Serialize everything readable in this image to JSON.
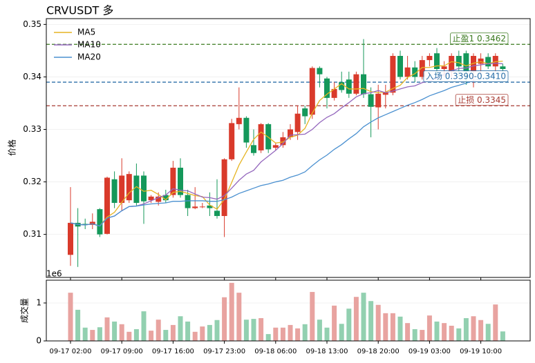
{
  "chart_data": {
    "type": "candlestick",
    "title": "CRVUSDT 多",
    "ylabel": "价格",
    "volume_label": "成交量",
    "volume_offset": "1e6",
    "categories": [
      "09-17 02:00",
      null,
      null,
      null,
      null,
      null,
      null,
      "09-17 09:00",
      null,
      null,
      null,
      null,
      null,
      null,
      "09-17 16:00",
      null,
      null,
      null,
      null,
      null,
      null,
      "09-17 23:00",
      null,
      null,
      null,
      null,
      null,
      null,
      "09-18 06:00",
      null,
      null,
      null,
      null,
      null,
      null,
      "09-18 13:00",
      null,
      null,
      null,
      null,
      null,
      null,
      "09-18 20:00",
      null,
      null,
      null,
      null,
      null,
      null,
      "09-19 03:00",
      null,
      null,
      null,
      null,
      null,
      null,
      "09-19 10:00",
      null,
      null,
      null
    ],
    "open": [
      0.3061,
      0.3122,
      0.312,
      0.3118,
      0.3148,
      0.3101,
      0.3205,
      0.316,
      0.3165,
      0.3212,
      0.3212,
      0.3165,
      0.3162,
      0.3175,
      0.3175,
      0.3227,
      0.3175,
      0.315,
      0.3152,
      0.3155,
      0.3145,
      0.3135,
      0.3243,
      0.331,
      0.3322,
      0.327,
      0.326,
      0.331,
      0.3265,
      0.327,
      0.3285,
      0.3295,
      0.334,
      0.3328,
      0.3417,
      0.3397,
      0.336,
      0.339,
      0.3395,
      0.3368,
      0.3405,
      0.3367,
      0.3342,
      0.3366,
      0.337,
      0.344,
      0.34,
      0.3418,
      0.34,
      0.3432,
      0.3445,
      0.3415,
      0.341,
      0.344,
      0.3445,
      0.341,
      0.3425,
      0.3438,
      0.342,
      0.342
    ],
    "high": [
      0.319,
      0.315,
      0.313,
      0.314,
      0.315,
      0.321,
      0.322,
      0.3245,
      0.322,
      0.3235,
      0.322,
      0.3175,
      0.318,
      0.3185,
      0.324,
      0.3245,
      0.3185,
      0.319,
      0.316,
      0.318,
      0.3205,
      0.3245,
      0.332,
      0.338,
      0.3325,
      0.33,
      0.3312,
      0.3312,
      0.3275,
      0.3295,
      0.331,
      0.3345,
      0.3345,
      0.342,
      0.342,
      0.34,
      0.339,
      0.341,
      0.341,
      0.341,
      0.3472,
      0.338,
      0.3385,
      0.3385,
      0.3445,
      0.345,
      0.344,
      0.343,
      0.344,
      0.3445,
      0.3455,
      0.343,
      0.3445,
      0.345,
      0.345,
      0.3445,
      0.3445,
      0.3445,
      0.3445,
      0.3425
    ],
    "low": [
      0.304,
      0.3038,
      0.311,
      0.311,
      0.3095,
      0.31,
      0.315,
      0.3145,
      0.316,
      0.3155,
      0.312,
      0.316,
      0.3155,
      0.316,
      0.317,
      0.317,
      0.3135,
      0.3148,
      0.315,
      0.3135,
      0.313,
      0.3095,
      0.324,
      0.33,
      0.3265,
      0.325,
      0.3255,
      0.3255,
      0.326,
      0.3265,
      0.328,
      0.328,
      0.331,
      0.332,
      0.338,
      0.334,
      0.3355,
      0.337,
      0.336,
      0.3365,
      0.336,
      0.3285,
      0.33,
      0.334,
      0.3365,
      0.3395,
      0.3395,
      0.339,
      0.3395,
      0.342,
      0.3405,
      0.34,
      0.34,
      0.34,
      0.3385,
      0.338,
      0.3405,
      0.3415,
      0.341,
      0.341
    ],
    "close": [
      0.3122,
      0.3115,
      0.3118,
      0.3124,
      0.31,
      0.3208,
      0.316,
      0.3212,
      0.3215,
      0.316,
      0.3163,
      0.3172,
      0.3172,
      0.3165,
      0.3227,
      0.3175,
      0.315,
      0.3153,
      0.3153,
      0.315,
      0.3135,
      0.3243,
      0.3312,
      0.3322,
      0.3275,
      0.3255,
      0.331,
      0.3262,
      0.327,
      0.3285,
      0.33,
      0.333,
      0.3325,
      0.3417,
      0.3405,
      0.336,
      0.3377,
      0.3375,
      0.3368,
      0.3405,
      0.3367,
      0.3343,
      0.3368,
      0.337,
      0.344,
      0.34,
      0.3418,
      0.34,
      0.3432,
      0.344,
      0.3415,
      0.342,
      0.344,
      0.342,
      0.341,
      0.344,
      0.3435,
      0.342,
      0.344,
      0.3415
    ],
    "volume": [
      1270000,
      820000,
      350000,
      290000,
      360000,
      620000,
      510000,
      440000,
      240000,
      310000,
      780000,
      270000,
      560000,
      290000,
      420000,
      650000,
      510000,
      240000,
      380000,
      420000,
      550000,
      1150000,
      1530000,
      1270000,
      560000,
      580000,
      600000,
      180000,
      350000,
      350000,
      420000,
      330000,
      440000,
      1290000,
      560000,
      350000,
      930000,
      450000,
      850000,
      1160000,
      1270000,
      1050000,
      950000,
      730000,
      730000,
      640000,
      470000,
      310000,
      290000,
      670000,
      510000,
      470000,
      400000,
      330000,
      600000,
      650000,
      550000,
      450000,
      960000,
      250000
    ],
    "up_color": "#d93a2b",
    "down_color": "#14985a",
    "up_volume_color": "#e8a3a0",
    "down_volume_color": "#92d0b0",
    "series": [
      {
        "name": "MA5",
        "color": "#e6b422",
        "values": [
          0.3122,
          0.3119,
          0.3118,
          0.312,
          0.3116,
          0.3133,
          0.3142,
          0.3161,
          0.3179,
          0.3191,
          0.3182,
          0.3184,
          0.3176,
          0.3166,
          0.318,
          0.3182,
          0.3178,
          0.3174,
          0.3172,
          0.3156,
          0.3148,
          0.3167,
          0.3199,
          0.3232,
          0.3257,
          0.3281,
          0.3295,
          0.3285,
          0.3274,
          0.3276,
          0.3285,
          0.3289,
          0.3302,
          0.3331,
          0.3355,
          0.3367,
          0.3377,
          0.3387,
          0.3377,
          0.3377,
          0.3378,
          0.3372,
          0.337,
          0.3371,
          0.3378,
          0.3384,
          0.3399,
          0.3406,
          0.3418,
          0.3418,
          0.3421,
          0.3421,
          0.3429,
          0.3427,
          0.3421,
          0.3426,
          0.3429,
          0.3425,
          0.3429,
          0.343
        ]
      },
      {
        "name": "MA10",
        "color": "#9467bd",
        "values": [
          0.3122,
          0.3119,
          0.3118,
          0.312,
          0.3116,
          0.3131,
          0.3135,
          0.3145,
          0.3153,
          0.3154,
          0.3158,
          0.3164,
          0.317,
          0.3175,
          0.3187,
          0.3184,
          0.3183,
          0.3177,
          0.3171,
          0.317,
          0.3167,
          0.3174,
          0.3188,
          0.3203,
          0.3215,
          0.3222,
          0.3238,
          0.3249,
          0.326,
          0.3273,
          0.3289,
          0.329,
          0.3291,
          0.33,
          0.3313,
          0.3323,
          0.333,
          0.3341,
          0.3351,
          0.3362,
          0.3368,
          0.337,
          0.3374,
          0.337,
          0.3373,
          0.3377,
          0.3381,
          0.3383,
          0.3389,
          0.3392,
          0.3397,
          0.3405,
          0.3412,
          0.3416,
          0.3417,
          0.3421,
          0.3423,
          0.3425,
          0.3426,
          0.3425
        ]
      },
      {
        "name": "MA20",
        "color": "#4a90d0",
        "values": [
          0.3122,
          0.3119,
          0.3118,
          0.312,
          0.3116,
          0.3131,
          0.3135,
          0.3145,
          0.3153,
          0.3154,
          0.3156,
          0.3158,
          0.3159,
          0.316,
          0.3163,
          0.3163,
          0.3164,
          0.3164,
          0.3164,
          0.3163,
          0.3163,
          0.3166,
          0.3171,
          0.3178,
          0.3183,
          0.3188,
          0.3193,
          0.3196,
          0.32,
          0.3203,
          0.3209,
          0.3213,
          0.3219,
          0.3231,
          0.3242,
          0.3251,
          0.3262,
          0.3271,
          0.3282,
          0.3292,
          0.3305,
          0.3314,
          0.3322,
          0.3328,
          0.3334,
          0.334,
          0.3346,
          0.3351,
          0.3357,
          0.3364,
          0.3369,
          0.3374,
          0.338,
          0.3384,
          0.3388,
          0.3393,
          0.3396,
          0.34,
          0.3404,
          0.3408
        ]
      }
    ],
    "levels": [
      {
        "label": "止盈1 0.3462",
        "value": 0.3462,
        "color": "#3a7a1e"
      },
      {
        "label": "入场 0.3390-0.3410",
        "value": 0.339,
        "color": "#2a6fa8"
      },
      {
        "label": "止损 0.3345",
        "value": 0.3345,
        "color": "#a83a32"
      }
    ],
    "ylim": [
      0.3018,
      0.3511
    ],
    "yticks": [
      0.31,
      0.32,
      0.33,
      0.34,
      0.35
    ],
    "volume_ylim": [
      0,
      1600000
    ],
    "volume_yticks": [
      0,
      {
        "value": 1000000,
        "label": "1"
      }
    ],
    "grid": true,
    "legend": "upper left"
  }
}
